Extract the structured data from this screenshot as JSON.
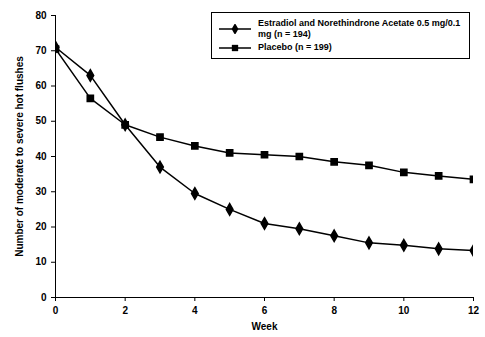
{
  "chart_data": {
    "type": "line",
    "x_label": "Week",
    "y_label": "Number of moderate to severe hot flushes",
    "x": [
      0,
      1,
      2,
      3,
      4,
      5,
      6,
      7,
      8,
      9,
      10,
      11,
      12
    ],
    "series": [
      {
        "name": "Estradiol and Norethindrone Acetate 0.5 mg/0.1 mg (n = 194)",
        "color": "#000000",
        "marker": "diamond",
        "values": [
          71,
          63,
          49,
          37,
          29.5,
          25,
          21,
          19.5,
          17.5,
          15.5,
          14.8,
          13.8,
          13.3
        ]
      },
      {
        "name": "Placebo (n = 199)",
        "color": "#000000",
        "marker": "square",
        "values": [
          70.5,
          56.5,
          49,
          45.5,
          43,
          41,
          40.5,
          40,
          38.5,
          37.5,
          35.5,
          34.5,
          33.5
        ]
      }
    ],
    "xlim": [
      0,
      12
    ],
    "xticks": [
      0,
      2,
      4,
      6,
      8,
      10,
      12
    ],
    "ylim": [
      0,
      80
    ],
    "yticks": [
      0,
      10,
      20,
      30,
      40,
      50,
      60,
      70,
      80
    ],
    "grid": false,
    "legend": "top-right"
  }
}
